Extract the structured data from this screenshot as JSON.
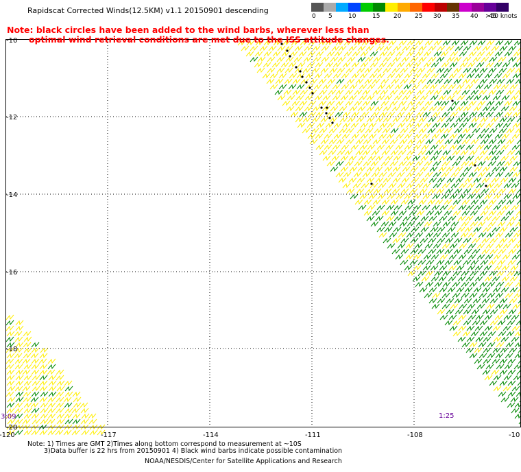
{
  "header": {
    "title": "Rapidscat Corrected Winds(12.5KM) v1.1 20150901 descending"
  },
  "note": {
    "line1": "Note: black circles have been added to the wind barbs, wherever less than",
    "line2": "optimal wind retrieval conditions are met due to the ISS attitude changes."
  },
  "legend": {
    "colors": [
      "#555555",
      "#aaaaaa",
      "#00aaff",
      "#0044ff",
      "#00cc00",
      "#008800",
      "#ffee00",
      "#ffaa00",
      "#ff6600",
      "#ff0000",
      "#bb0000",
      "#663300",
      "#cc00cc",
      "#990099",
      "#660099",
      "#330066"
    ],
    "labels": [
      "0",
      "5",
      "10",
      "15",
      "20",
      "25",
      "30",
      "35",
      "40",
      "45",
      ">50 knots"
    ]
  },
  "map": {
    "lat_labels": [
      "-10",
      "-12",
      "-14",
      "-16",
      "-18",
      "-20"
    ],
    "lon_labels": [
      "-120",
      "-117",
      "-114",
      "-111",
      "-108",
      "-10"
    ],
    "time_labels": [
      "3:09",
      "1:25"
    ],
    "barb_colors": {
      "light": "#ffee00",
      "moderate": "#008800",
      "contaminated": "#000000"
    }
  },
  "footer": {
    "line1": "Note: 1) Times are GMT 2)Times along bottom correspond to measurement at ~10S",
    "line2": "3)Data buffer is 22 hrs from 20150901 4) Black wind barbs indicate possible contamination",
    "line3": "NOAA/NESDIS/Center for Satellite Applications and Research"
  }
}
